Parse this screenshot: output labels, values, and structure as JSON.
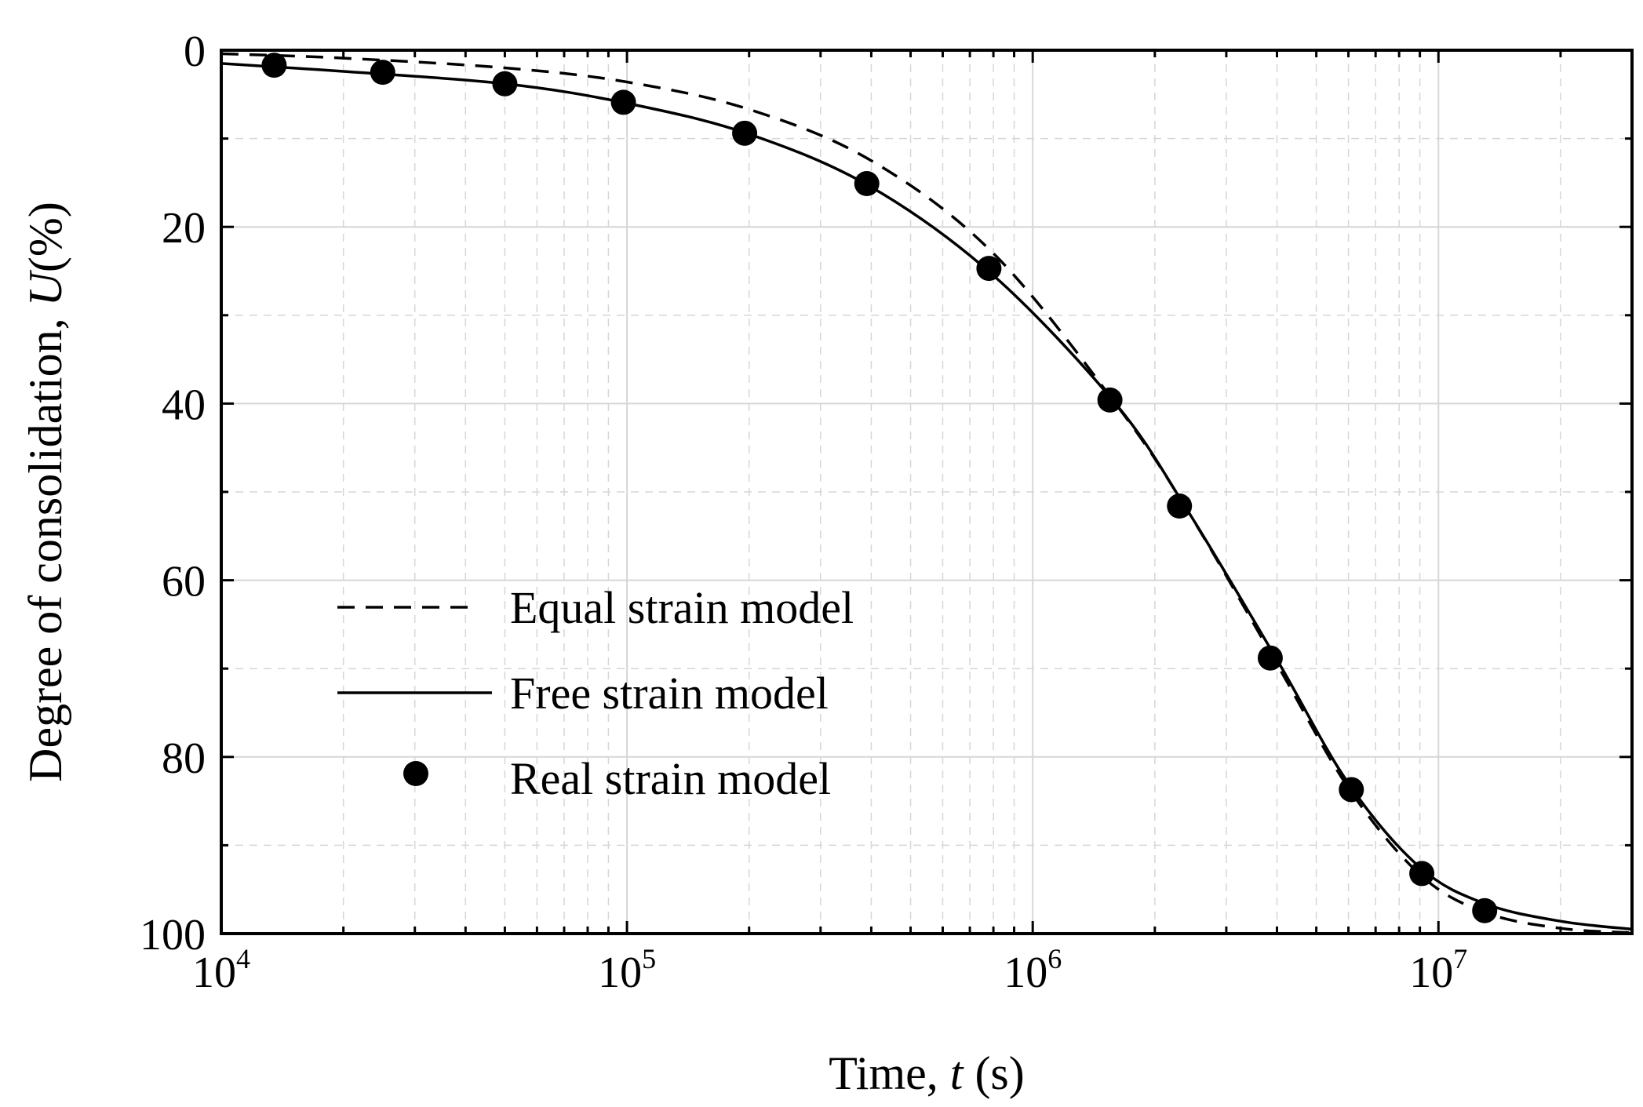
{
  "chart_data": {
    "type": "line",
    "x_scale": "log",
    "y_inverted": true,
    "xlim": [
      10000,
      30000000
    ],
    "ylim": [
      0,
      100
    ],
    "xlabel": {
      "prefix": "Time, ",
      "variable": "t",
      "suffix": " (s)"
    },
    "ylabel": {
      "prefix": "Degree of consolidation, ",
      "variable": "U",
      "suffix": "(%)"
    },
    "x_ticks": [
      {
        "base": "10",
        "exp": "4",
        "value": 10000
      },
      {
        "base": "10",
        "exp": "5",
        "value": 100000
      },
      {
        "base": "10",
        "exp": "6",
        "value": 1000000
      },
      {
        "base": "10",
        "exp": "7",
        "value": 10000000
      }
    ],
    "y_ticks": [
      {
        "label": "0",
        "value": 0
      },
      {
        "label": "20",
        "value": 20
      },
      {
        "label": "40",
        "value": 40
      },
      {
        "label": "60",
        "value": 60
      },
      {
        "label": "80",
        "value": 80
      },
      {
        "label": "100",
        "value": 100
      }
    ],
    "y_minor_ticks": [
      10,
      30,
      50,
      70,
      90
    ],
    "grid": true,
    "legend_position": "lower-left",
    "series": [
      {
        "name": "Equal strain model",
        "style": "dashed",
        "x": [
          10000,
          20000,
          50000,
          100000,
          200000,
          400000,
          800000,
          1600000,
          2400000,
          4000000,
          6000000,
          9000000,
          13000000,
          20000000,
          30000000
        ],
        "y": [
          0.4,
          0.9,
          2.0,
          3.6,
          6.7,
          12.5,
          23.0,
          40.0,
          52.0,
          69.5,
          83.5,
          93.3,
          97.6,
          99.4,
          99.9
        ]
      },
      {
        "name": "Free strain model",
        "style": "solid",
        "x": [
          10000,
          20000,
          50000,
          100000,
          200000,
          400000,
          800000,
          1600000,
          2400000,
          4000000,
          6000000,
          9000000,
          13000000,
          20000000,
          30000000
        ],
        "y": [
          1.5,
          2.4,
          3.8,
          6.0,
          9.5,
          15.5,
          25.5,
          40.0,
          52.0,
          69.0,
          83.0,
          92.5,
          96.6,
          98.6,
          99.5
        ]
      },
      {
        "name": "Real strain model",
        "style": "markers",
        "x": [
          13500,
          25000,
          50000,
          98000,
          195000,
          390000,
          780000,
          1550000,
          2300000,
          3850000,
          6100000,
          9100000,
          13000000
        ],
        "y": [
          1.7,
          2.5,
          3.8,
          5.9,
          9.4,
          15.1,
          24.7,
          39.6,
          51.6,
          68.8,
          83.7,
          93.2,
          97.4
        ]
      }
    ]
  }
}
